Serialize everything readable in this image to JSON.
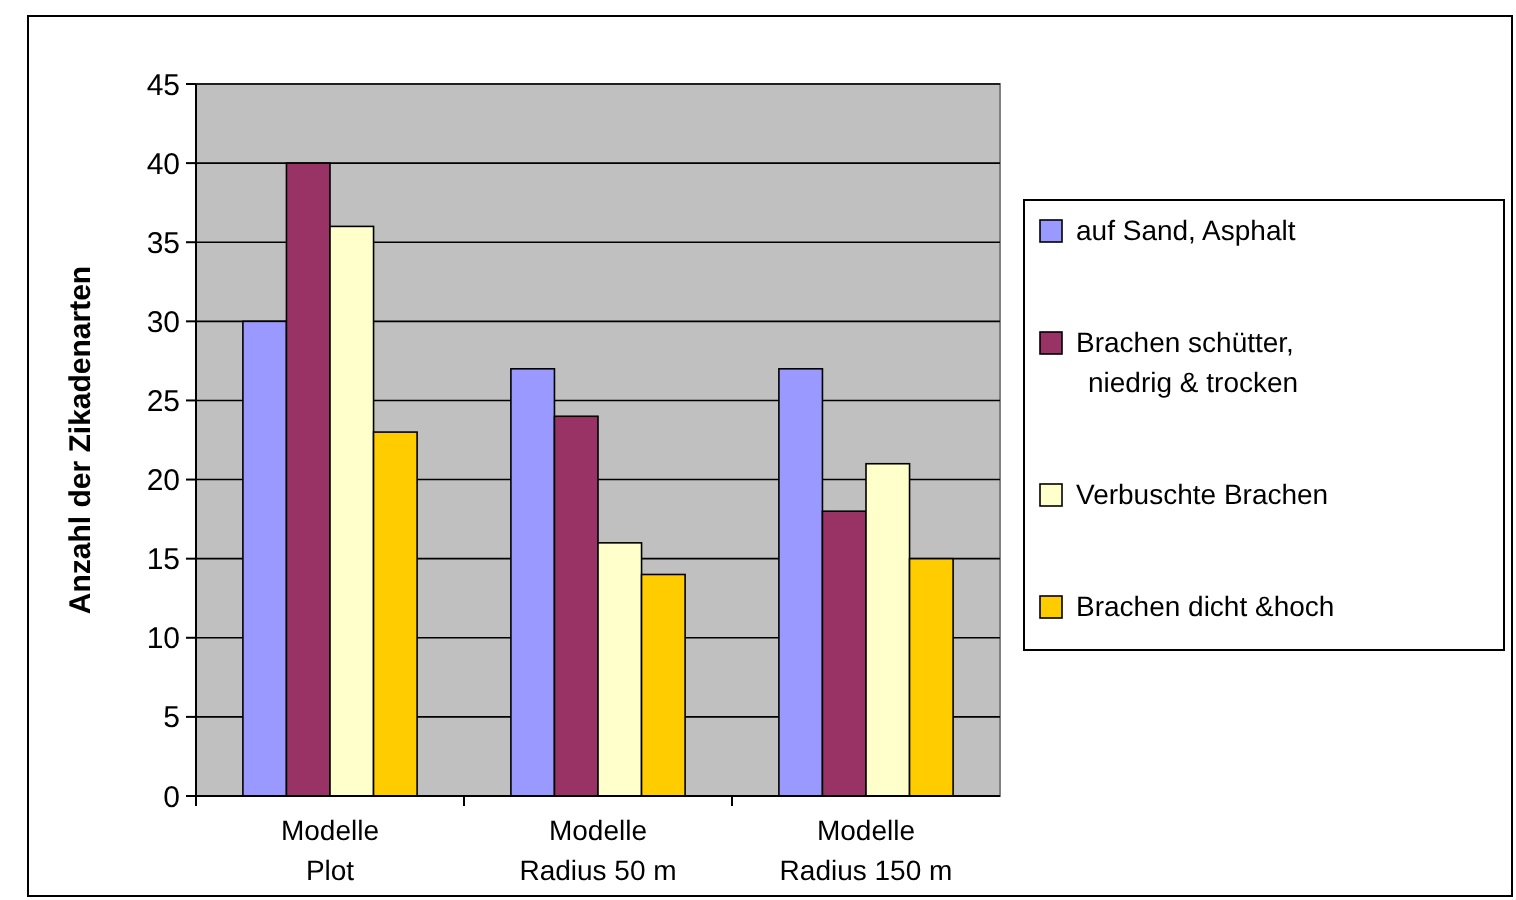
{
  "chart_data": {
    "type": "bar",
    "ylabel": "Anzahl der Zikadenarten",
    "categories": [
      "Modelle Plot",
      "Modelle Radius 50 m",
      "Modelle Radius 150 m"
    ],
    "series": [
      {
        "name": "auf Sand, Asphalt",
        "color": "#9999ff",
        "values": [
          30,
          27,
          27
        ]
      },
      {
        "name": "Brachen schütter, niedrig & trocken",
        "color": "#993366",
        "values": [
          40,
          24,
          18
        ]
      },
      {
        "name": "Verbuschte Brachen",
        "color": "#ffffcc",
        "values": [
          36,
          16,
          21
        ]
      },
      {
        "name": "Brachen dicht &hoch",
        "color": "#ffcc00",
        "values": [
          23,
          14,
          15
        ]
      }
    ],
    "ylim": [
      0,
      45
    ],
    "yticks": [
      0,
      5,
      10,
      15,
      20,
      25,
      30,
      35,
      40,
      45
    ],
    "grid": "y",
    "legend": "right"
  }
}
